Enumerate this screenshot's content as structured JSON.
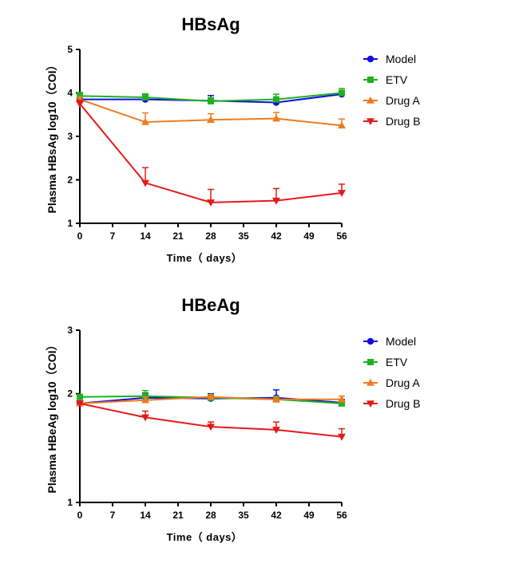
{
  "chart_data": [
    {
      "type": "line",
      "title": "HBsAg",
      "xlabel": "Time（ days）",
      "ylabel": "Plasma HBsAg log10（COI）",
      "x": [
        0,
        14,
        28,
        42,
        56
      ],
      "xticks": [
        0,
        7,
        14,
        21,
        28,
        35,
        42,
        49,
        56
      ],
      "xlim": [
        0,
        56
      ],
      "yticks": [
        1,
        2,
        3,
        4,
        5
      ],
      "ylim": [
        1,
        5
      ],
      "y_scale": "linear",
      "grid": false,
      "legend_position": "right",
      "series": [
        {
          "name": "Model",
          "color": "#1010e0",
          "marker": "circle",
          "values": [
            3.85,
            3.85,
            3.82,
            3.78,
            3.97
          ],
          "errors": [
            0.07,
            0.07,
            0.12,
            0.08,
            0.05
          ]
        },
        {
          "name": "ETV",
          "color": "#20b020",
          "marker": "square",
          "values": [
            3.93,
            3.9,
            3.81,
            3.85,
            4.0
          ],
          "errors": [
            0.08,
            0.08,
            0.08,
            0.12,
            0.1
          ]
        },
        {
          "name": "Drug A",
          "color": "#f07a1e",
          "marker": "triangle-up",
          "values": [
            3.85,
            3.33,
            3.38,
            3.41,
            3.25
          ],
          "errors": [
            0.07,
            0.21,
            0.14,
            0.14,
            0.15
          ]
        },
        {
          "name": "Drug B",
          "color": "#e41a1a",
          "marker": "triangle-down",
          "values": [
            3.75,
            1.93,
            1.48,
            1.52,
            1.7
          ],
          "errors": [
            0.08,
            0.35,
            0.3,
            0.28,
            0.2
          ]
        }
      ]
    },
    {
      "type": "line",
      "title": "HBeAg",
      "xlabel": "Time（ days）",
      "ylabel": "Plasma HBeAg log10（COI）",
      "x": [
        0,
        14,
        28,
        42,
        56
      ],
      "xticks": [
        0,
        7,
        14,
        21,
        28,
        35,
        42,
        49,
        56
      ],
      "xlim": [
        0,
        56
      ],
      "yticks": [
        1,
        2,
        3
      ],
      "ylim": [
        1,
        3
      ],
      "y_scale": "log",
      "grid": false,
      "legend_position": "right",
      "series": [
        {
          "name": "Model",
          "color": "#1010e0",
          "marker": "circle",
          "values": [
            1.88,
            1.95,
            1.94,
            1.95,
            1.89
          ],
          "errors": [
            0.03,
            0.06,
            0.06,
            0.1,
            0.04
          ]
        },
        {
          "name": "ETV",
          "color": "#20b020",
          "marker": "square",
          "values": [
            1.96,
            1.97,
            1.95,
            1.93,
            1.88
          ],
          "errors": [
            0.03,
            0.07,
            0.04,
            0.04,
            0.04
          ]
        },
        {
          "name": "Drug A",
          "color": "#f07a1e",
          "marker": "triangle-up",
          "values": [
            1.88,
            1.92,
            1.96,
            1.93,
            1.93
          ],
          "errors": [
            0.03,
            0.04,
            0.03,
            0.03,
            0.04
          ]
        },
        {
          "name": "Drug B",
          "color": "#e41a1a",
          "marker": "triangle-down",
          "values": [
            1.88,
            1.72,
            1.62,
            1.59,
            1.52
          ],
          "errors": [
            0.03,
            0.07,
            0.05,
            0.08,
            0.08
          ]
        }
      ]
    }
  ]
}
